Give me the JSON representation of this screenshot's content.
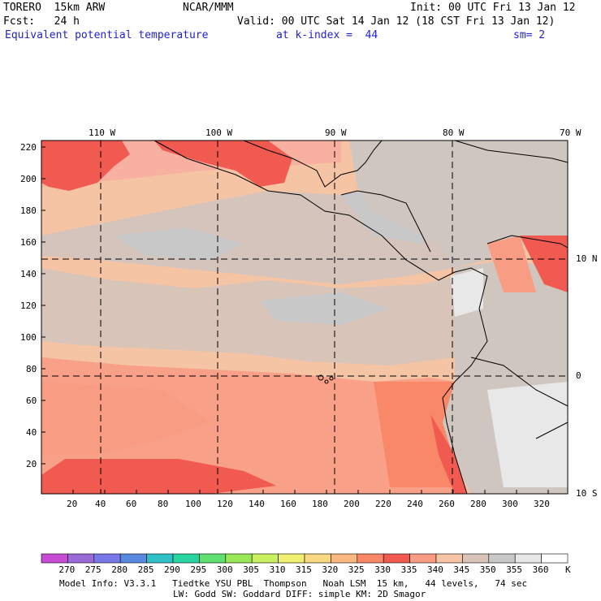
{
  "header": {
    "line1_left": "TORERO  15km ARW",
    "line1_center": "NCAR/MMM",
    "line1_right": "Init: 00 UTC Fri 13 Jan 12",
    "line2_left": "Fcst:   24 h",
    "line2_right": "Valid: 00 UTC Sat 14 Jan 12 (18 CST Fri 13 Jan 12)",
    "field_name": "Equivalent potential temperature",
    "level": "at k-index =  44",
    "smoothing": "sm= 2"
  },
  "map": {
    "lon_labels": [
      "110 W",
      "100 W",
      "90 W",
      "80 W",
      "70 W"
    ],
    "lat_labels": [
      "10 N",
      "0",
      "10 S"
    ],
    "y_ticks": [
      "220",
      "200",
      "180",
      "160",
      "140",
      "120",
      "100",
      "80",
      "60",
      "40",
      "20"
    ],
    "x_ticks": [
      "20",
      "40",
      "60",
      "80",
      "100",
      "120",
      "140",
      "160",
      "180",
      "200",
      "220",
      "240",
      "260",
      "280",
      "300",
      "320"
    ]
  },
  "colorbar": {
    "labels": [
      "270",
      "275",
      "280",
      "285",
      "290",
      "295",
      "300",
      "305",
      "310",
      "315",
      "320",
      "325",
      "330",
      "335",
      "340",
      "345",
      "350",
      "355",
      "360"
    ],
    "unit": "K",
    "colors": [
      "#c84bd4",
      "#9a6ad8",
      "#7878e8",
      "#5a8ae0",
      "#30c0c8",
      "#28d4a0",
      "#60e070",
      "#98e858",
      "#c8f060",
      "#f0f070",
      "#f8d880",
      "#f8b880",
      "#f88868",
      "#f05a50",
      "#f89c84",
      "#f4c4a4",
      "#d8c4b8",
      "#c8c8c8",
      "#e8e8e8",
      "#ffffff"
    ]
  },
  "footer": {
    "line1": "Model Info: V3.3.1   Tiedtke YSU PBL  Thompson   Noah LSM  15 km,   44 levels,   74 sec",
    "line2": "LW: Godd SW: Goddard DIFF: simple KM: 2D Smagor"
  }
}
